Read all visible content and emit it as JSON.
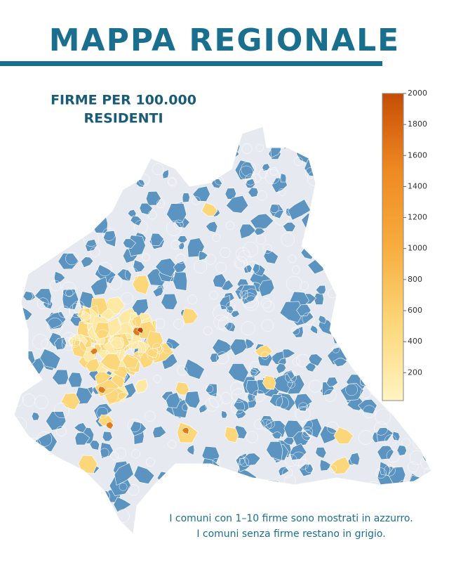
{
  "header": {
    "title": "MAPPA REGIONALE"
  },
  "legend": {
    "title_lines": [
      "FIRME PER 100.000",
      "RESIDENTI"
    ],
    "range": [
      20,
      2000
    ],
    "ticks": [
      200,
      400,
      600,
      800,
      1000,
      1200,
      1400,
      1600,
      1800,
      2000
    ],
    "colors": [
      "#fff4c2",
      "#fcd77a",
      "#f8ad3e",
      "#ee8a22",
      "#c64d05"
    ]
  },
  "footnote": {
    "lines": [
      "I comuni con 1–10 firme sono mostrati in azzurro.",
      "I comuni senza firme restano in grigio."
    ]
  }
}
